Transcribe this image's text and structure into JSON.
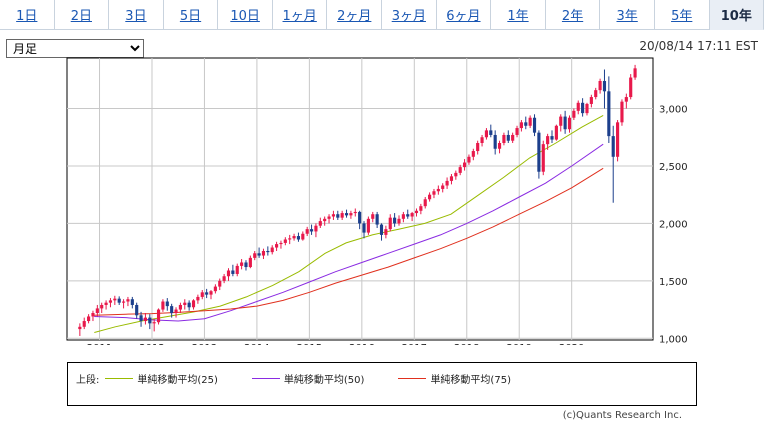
{
  "tabs": [
    {
      "label": "1日",
      "active": false
    },
    {
      "label": "2日",
      "active": false
    },
    {
      "label": "3日",
      "active": false
    },
    {
      "label": "5日",
      "active": false
    },
    {
      "label": "10日",
      "active": false
    },
    {
      "label": "1ヶ月",
      "active": false
    },
    {
      "label": "2ヶ月",
      "active": false
    },
    {
      "label": "3ヶ月",
      "active": false
    },
    {
      "label": "6ヶ月",
      "active": false
    },
    {
      "label": "1年",
      "active": false
    },
    {
      "label": "2年",
      "active": false
    },
    {
      "label": "3年",
      "active": false
    },
    {
      "label": "5年",
      "active": false
    },
    {
      "label": "10年",
      "active": true
    }
  ],
  "period_select": {
    "value": "月足"
  },
  "timestamp": "20/08/14 17:11 EST",
  "legend": {
    "prefix": "上段:",
    "items": [
      {
        "label": "単純移動平均(25)",
        "color": "#99bb00"
      },
      {
        "label": "単純移動平均(50)",
        "color": "#8a2be2"
      },
      {
        "label": "単純移動平均(75)",
        "color": "#e0301e"
      }
    ]
  },
  "copyright": "(c)Quants Research Inc.",
  "colors": {
    "up": "#e8194b",
    "down": "#1c3f8c",
    "grid": "#c8c8c8"
  },
  "chart_data": {
    "type": "candlestick",
    "x_ticks": [
      "2011",
      "2012",
      "2013",
      "2014",
      "2015",
      "2016",
      "2017",
      "2018",
      "2019",
      "2020"
    ],
    "y_ticks": [
      "1,000",
      "1,500",
      "2,000",
      "2,500",
      "3,000"
    ],
    "y_tick_values": [
      1000,
      1500,
      2000,
      2500,
      3000
    ],
    "ylim": [
      985,
      3440
    ],
    "xlim": [
      2010.38,
      2021.55
    ],
    "grid": true,
    "start": 2010.625,
    "step": 0.083333,
    "ohlc": [
      [
        1080,
        1130,
        1020,
        1100
      ],
      [
        1100,
        1180,
        1080,
        1150
      ],
      [
        1150,
        1210,
        1130,
        1190
      ],
      [
        1190,
        1240,
        1150,
        1220
      ],
      [
        1220,
        1290,
        1190,
        1260
      ],
      [
        1260,
        1310,
        1220,
        1290
      ],
      [
        1290,
        1330,
        1250,
        1310
      ],
      [
        1310,
        1350,
        1270,
        1330
      ],
      [
        1330,
        1370,
        1290,
        1345
      ],
      [
        1345,
        1365,
        1290,
        1310
      ],
      [
        1310,
        1340,
        1260,
        1320
      ],
      [
        1320,
        1360,
        1280,
        1340
      ],
      [
        1340,
        1360,
        1260,
        1290
      ],
      [
        1290,
        1310,
        1170,
        1200
      ],
      [
        1200,
        1230,
        1100,
        1150
      ],
      [
        1150,
        1220,
        1120,
        1180
      ],
      [
        1180,
        1210,
        1080,
        1130
      ],
      [
        1130,
        1170,
        1060,
        1140
      ],
      [
        1140,
        1260,
        1120,
        1250
      ],
      [
        1250,
        1340,
        1230,
        1320
      ],
      [
        1320,
        1350,
        1240,
        1280
      ],
      [
        1280,
        1300,
        1180,
        1220
      ],
      [
        1220,
        1270,
        1180,
        1250
      ],
      [
        1250,
        1310,
        1220,
        1290
      ],
      [
        1290,
        1340,
        1250,
        1310
      ],
      [
        1310,
        1330,
        1240,
        1270
      ],
      [
        1270,
        1340,
        1250,
        1330
      ],
      [
        1330,
        1380,
        1300,
        1360
      ],
      [
        1360,
        1420,
        1340,
        1400
      ],
      [
        1400,
        1430,
        1350,
        1380
      ],
      [
        1380,
        1420,
        1340,
        1410
      ],
      [
        1410,
        1470,
        1390,
        1450
      ],
      [
        1450,
        1520,
        1420,
        1500
      ],
      [
        1500,
        1560,
        1480,
        1540
      ],
      [
        1540,
        1610,
        1500,
        1590
      ],
      [
        1590,
        1640,
        1540,
        1560
      ],
      [
        1560,
        1650,
        1540,
        1630
      ],
      [
        1630,
        1690,
        1600,
        1660
      ],
      [
        1660,
        1680,
        1590,
        1620
      ],
      [
        1620,
        1720,
        1610,
        1700
      ],
      [
        1700,
        1760,
        1680,
        1740
      ],
      [
        1740,
        1790,
        1700,
        1720
      ],
      [
        1720,
        1780,
        1690,
        1760
      ],
      [
        1760,
        1800,
        1720,
        1750
      ],
      [
        1750,
        1810,
        1730,
        1790
      ],
      [
        1790,
        1840,
        1760,
        1820
      ],
      [
        1820,
        1850,
        1780,
        1830
      ],
      [
        1830,
        1880,
        1810,
        1860
      ],
      [
        1860,
        1900,
        1820,
        1870
      ],
      [
        1870,
        1910,
        1850,
        1890
      ],
      [
        1890,
        1920,
        1840,
        1860
      ],
      [
        1860,
        1930,
        1850,
        1910
      ],
      [
        1910,
        1970,
        1890,
        1950
      ],
      [
        1950,
        1990,
        1900,
        1930
      ],
      [
        1930,
        2000,
        1880,
        1980
      ],
      [
        1980,
        2050,
        1960,
        2020
      ],
      [
        2020,
        2060,
        1980,
        2040
      ],
      [
        2040,
        2080,
        2000,
        2060
      ],
      [
        2060,
        2110,
        2030,
        2080
      ],
      [
        2080,
        2110,
        2030,
        2050
      ],
      [
        2050,
        2110,
        2030,
        2090
      ],
      [
        2090,
        2120,
        2050,
        2070
      ],
      [
        2070,
        2110,
        2040,
        2090
      ],
      [
        2090,
        2130,
        2060,
        2100
      ],
      [
        2100,
        2110,
        1950,
        2000
      ],
      [
        2000,
        2020,
        1870,
        1920
      ],
      [
        1920,
        2060,
        1900,
        2040
      ],
      [
        2040,
        2100,
        2010,
        2080
      ],
      [
        2080,
        2100,
        1960,
        1990
      ],
      [
        1990,
        2000,
        1850,
        1900
      ],
      [
        1900,
        1980,
        1870,
        1950
      ],
      [
        1950,
        2080,
        1930,
        2050
      ],
      [
        2050,
        2090,
        1970,
        2000
      ],
      [
        2000,
        2070,
        1980,
        2040
      ],
      [
        2040,
        2100,
        2010,
        2080
      ],
      [
        2080,
        2120,
        2040,
        2060
      ],
      [
        2060,
        2100,
        2020,
        2090
      ],
      [
        2090,
        2130,
        2060,
        2110
      ],
      [
        2110,
        2170,
        2080,
        2150
      ],
      [
        2150,
        2230,
        2130,
        2210
      ],
      [
        2210,
        2270,
        2190,
        2250
      ],
      [
        2250,
        2300,
        2220,
        2280
      ],
      [
        2280,
        2330,
        2250,
        2300
      ],
      [
        2300,
        2350,
        2270,
        2330
      ],
      [
        2330,
        2400,
        2300,
        2370
      ],
      [
        2370,
        2430,
        2340,
        2410
      ],
      [
        2410,
        2460,
        2380,
        2440
      ],
      [
        2440,
        2510,
        2420,
        2490
      ],
      [
        2490,
        2560,
        2460,
        2530
      ],
      [
        2530,
        2600,
        2510,
        2580
      ],
      [
        2580,
        2650,
        2550,
        2630
      ],
      [
        2630,
        2720,
        2600,
        2700
      ],
      [
        2700,
        2770,
        2670,
        2750
      ],
      [
        2750,
        2830,
        2730,
        2810
      ],
      [
        2810,
        2860,
        2750,
        2770
      ],
      [
        2770,
        2810,
        2600,
        2650
      ],
      [
        2650,
        2720,
        2610,
        2700
      ],
      [
        2700,
        2790,
        2680,
        2770
      ],
      [
        2770,
        2810,
        2700,
        2720
      ],
      [
        2720,
        2790,
        2700,
        2770
      ],
      [
        2770,
        2850,
        2750,
        2830
      ],
      [
        2830,
        2900,
        2800,
        2880
      ],
      [
        2880,
        2930,
        2820,
        2850
      ],
      [
        2850,
        2940,
        2830,
        2920
      ],
      [
        2920,
        2950,
        2760,
        2790
      ],
      [
        2790,
        2810,
        2390,
        2450
      ],
      [
        2450,
        2720,
        2420,
        2690
      ],
      [
        2690,
        2780,
        2640,
        2760
      ],
      [
        2760,
        2810,
        2700,
        2730
      ],
      [
        2730,
        2860,
        2720,
        2850
      ],
      [
        2850,
        2950,
        2800,
        2930
      ],
      [
        2930,
        2980,
        2780,
        2820
      ],
      [
        2820,
        2940,
        2790,
        2920
      ],
      [
        2920,
        3000,
        2900,
        2980
      ],
      [
        2980,
        3070,
        2950,
        3050
      ],
      [
        3050,
        3090,
        2930,
        2960
      ],
      [
        2960,
        3050,
        2940,
        3040
      ],
      [
        3040,
        3120,
        3010,
        3100
      ],
      [
        3100,
        3180,
        3080,
        3160
      ],
      [
        3160,
        3260,
        3130,
        3240
      ],
      [
        3240,
        3340,
        3000,
        3150
      ],
      [
        3150,
        3280,
        2700,
        2760
      ],
      [
        2760,
        2850,
        2180,
        2580
      ],
      [
        2580,
        2900,
        2540,
        2880
      ],
      [
        2880,
        3080,
        2850,
        3060
      ],
      [
        3060,
        3130,
        3000,
        3100
      ],
      [
        3100,
        3300,
        3080,
        3270
      ],
      [
        3270,
        3380,
        3250,
        3350
      ]
    ],
    "ma_series": [
      {
        "name": "単純移動平均(25)",
        "color": "#99bb00",
        "points": [
          [
            2010.9,
            1050
          ],
          [
            2011.3,
            1100
          ],
          [
            2011.8,
            1150
          ],
          [
            2012.3,
            1190
          ],
          [
            2012.8,
            1230
          ],
          [
            2013.3,
            1280
          ],
          [
            2013.8,
            1360
          ],
          [
            2014.3,
            1460
          ],
          [
            2014.8,
            1580
          ],
          [
            2015.3,
            1740
          ],
          [
            2015.7,
            1830
          ],
          [
            2016.2,
            1900
          ],
          [
            2016.7,
            1950
          ],
          [
            2017.2,
            2000
          ],
          [
            2017.7,
            2080
          ],
          [
            2018.2,
            2240
          ],
          [
            2018.7,
            2400
          ],
          [
            2019.2,
            2570
          ],
          [
            2019.7,
            2700
          ],
          [
            2020.2,
            2840
          ],
          [
            2020.6,
            2940
          ]
        ]
      },
      {
        "name": "単純移動平均(50)",
        "color": "#8a2be2",
        "points": [
          [
            2010.9,
            1190
          ],
          [
            2011.5,
            1180
          ],
          [
            2012.0,
            1160
          ],
          [
            2012.5,
            1150
          ],
          [
            2013.0,
            1170
          ],
          [
            2013.5,
            1240
          ],
          [
            2014.0,
            1320
          ],
          [
            2014.5,
            1400
          ],
          [
            2015.0,
            1490
          ],
          [
            2015.5,
            1580
          ],
          [
            2016.0,
            1660
          ],
          [
            2016.5,
            1740
          ],
          [
            2017.0,
            1820
          ],
          [
            2017.5,
            1900
          ],
          [
            2018.0,
            2000
          ],
          [
            2018.5,
            2110
          ],
          [
            2019.0,
            2230
          ],
          [
            2019.5,
            2350
          ],
          [
            2020.0,
            2500
          ],
          [
            2020.6,
            2690
          ]
        ]
      },
      {
        "name": "単純移動平均(75)",
        "color": "#e0301e",
        "points": [
          [
            2010.9,
            1200
          ],
          [
            2011.5,
            1210
          ],
          [
            2012.0,
            1215
          ],
          [
            2012.5,
            1225
          ],
          [
            2013.0,
            1240
          ],
          [
            2013.5,
            1255
          ],
          [
            2014.0,
            1280
          ],
          [
            2014.5,
            1330
          ],
          [
            2015.0,
            1400
          ],
          [
            2015.5,
            1480
          ],
          [
            2016.0,
            1550
          ],
          [
            2016.5,
            1620
          ],
          [
            2017.0,
            1700
          ],
          [
            2017.5,
            1780
          ],
          [
            2018.0,
            1870
          ],
          [
            2018.5,
            1970
          ],
          [
            2019.0,
            2080
          ],
          [
            2019.5,
            2190
          ],
          [
            2020.0,
            2310
          ],
          [
            2020.6,
            2480
          ]
        ]
      }
    ]
  }
}
